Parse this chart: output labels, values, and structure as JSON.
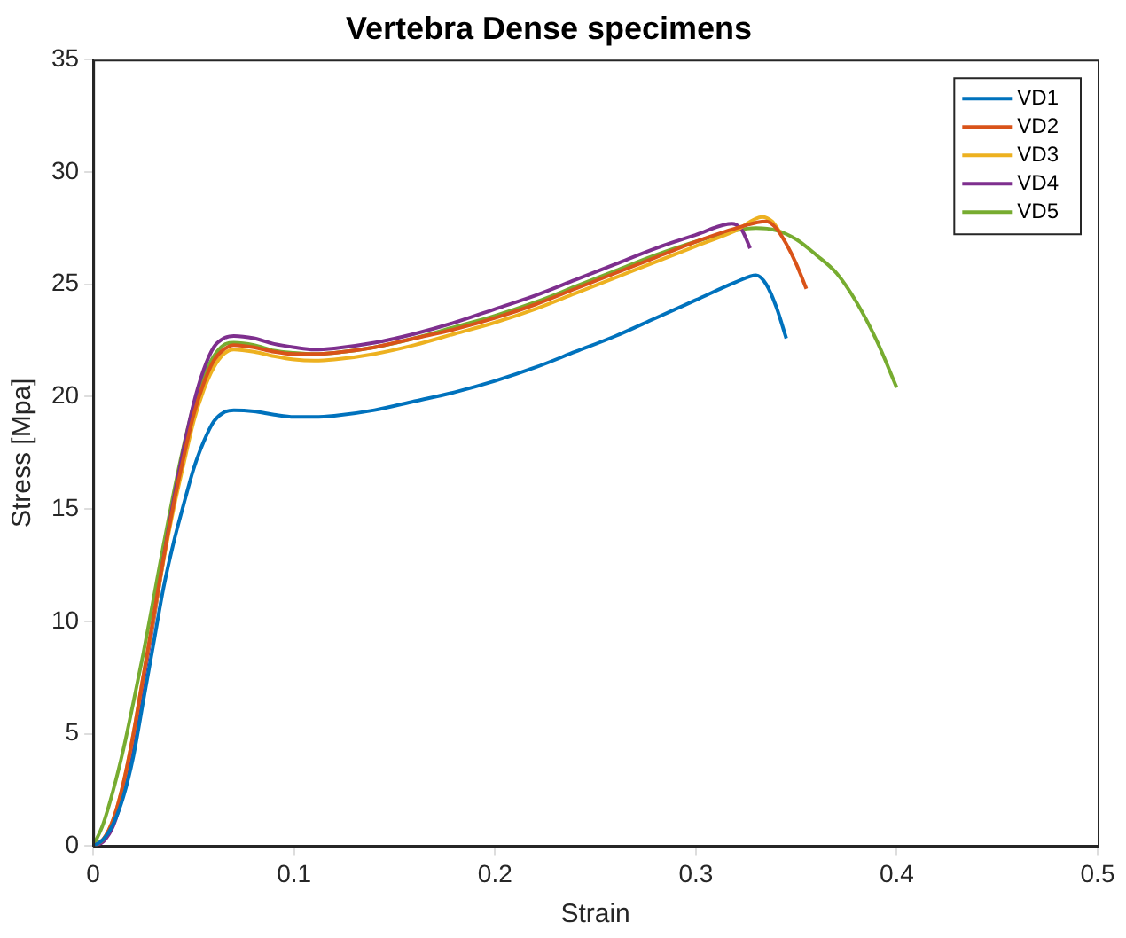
{
  "chart_data": {
    "type": "line",
    "title": "Vertebra Dense specimens",
    "xlabel": "Strain",
    "ylabel": "Stress [Mpa]",
    "xlim": [
      0,
      0.5
    ],
    "xticks": [
      0,
      0.1,
      0.2,
      0.3,
      0.4,
      0.5
    ],
    "ylim": [
      0,
      35
    ],
    "yticks": [
      0,
      5,
      10,
      15,
      20,
      25,
      30,
      35
    ],
    "grid": false,
    "legend": "top right",
    "marker": "none",
    "line_style": "solid",
    "series": [
      {
        "name": "VD1",
        "color": "#0072bd",
        "x": [
          0,
          0.005,
          0.01,
          0.015,
          0.02,
          0.025,
          0.03,
          0.035,
          0.04,
          0.045,
          0.05,
          0.055,
          0.06,
          0.065,
          0.07,
          0.08,
          0.09,
          0.1,
          0.11,
          0.12,
          0.14,
          0.16,
          0.18,
          0.2,
          0.22,
          0.24,
          0.26,
          0.28,
          0.3,
          0.32,
          0.33,
          0.335,
          0.34,
          0.345
        ],
        "values": [
          0,
          0.3,
          1,
          2.2,
          4,
          6.5,
          9,
          11.5,
          13.5,
          15.2,
          16.8,
          18,
          18.9,
          19.3,
          19.4,
          19.35,
          19.2,
          19.1,
          19.1,
          19.15,
          19.4,
          19.8,
          20.2,
          20.7,
          21.3,
          22,
          22.7,
          23.5,
          24.3,
          25.1,
          25.4,
          25,
          24,
          22.6
        ]
      },
      {
        "name": "VD2",
        "color": "#d95319",
        "x": [
          0,
          0.005,
          0.01,
          0.015,
          0.02,
          0.025,
          0.03,
          0.035,
          0.04,
          0.045,
          0.05,
          0.055,
          0.06,
          0.065,
          0.07,
          0.08,
          0.09,
          0.1,
          0.11,
          0.12,
          0.14,
          0.16,
          0.18,
          0.2,
          0.22,
          0.24,
          0.26,
          0.28,
          0.3,
          0.32,
          0.335,
          0.34,
          0.345,
          0.35,
          0.355
        ],
        "values": [
          0,
          0.3,
          1.2,
          2.8,
          5,
          7.6,
          10.2,
          12.8,
          15.2,
          17.3,
          19.2,
          20.6,
          21.6,
          22.1,
          22.3,
          22.2,
          22,
          21.9,
          21.9,
          21.95,
          22.2,
          22.6,
          23,
          23.5,
          24.1,
          24.8,
          25.5,
          26.2,
          26.9,
          27.5,
          27.8,
          27.5,
          26.8,
          25.9,
          24.8
        ]
      },
      {
        "name": "VD3",
        "color": "#edb120",
        "x": [
          0,
          0.005,
          0.01,
          0.015,
          0.02,
          0.025,
          0.03,
          0.035,
          0.04,
          0.045,
          0.05,
          0.055,
          0.06,
          0.065,
          0.07,
          0.08,
          0.09,
          0.1,
          0.11,
          0.12,
          0.14,
          0.16,
          0.18,
          0.2,
          0.22,
          0.24,
          0.26,
          0.28,
          0.3,
          0.32,
          0.333,
          0.338,
          0.342
        ],
        "values": [
          0,
          0.3,
          1.2,
          2.8,
          5,
          7.6,
          10.1,
          12.7,
          15,
          17,
          18.9,
          20.3,
          21.3,
          21.9,
          22.1,
          22,
          21.8,
          21.65,
          21.6,
          21.65,
          21.9,
          22.3,
          22.8,
          23.3,
          23.9,
          24.6,
          25.3,
          26,
          26.7,
          27.4,
          28,
          27.8,
          27.3
        ]
      },
      {
        "name": "VD4",
        "color": "#7e2f8e",
        "x": [
          0,
          0.005,
          0.01,
          0.015,
          0.02,
          0.025,
          0.03,
          0.035,
          0.04,
          0.045,
          0.05,
          0.055,
          0.06,
          0.065,
          0.07,
          0.08,
          0.09,
          0.1,
          0.11,
          0.12,
          0.14,
          0.16,
          0.18,
          0.2,
          0.22,
          0.24,
          0.26,
          0.28,
          0.3,
          0.318,
          0.323,
          0.327
        ],
        "values": [
          0,
          0.2,
          0.9,
          2.4,
          4.6,
          7.3,
          10,
          12.8,
          15.4,
          17.7,
          19.7,
          21.2,
          22.2,
          22.6,
          22.7,
          22.6,
          22.35,
          22.2,
          22.1,
          22.15,
          22.4,
          22.8,
          23.3,
          23.9,
          24.5,
          25.2,
          25.9,
          26.6,
          27.2,
          27.7,
          27.4,
          26.6
        ]
      },
      {
        "name": "VD5",
        "color": "#77ac30",
        "x": [
          0,
          0.005,
          0.01,
          0.015,
          0.02,
          0.025,
          0.03,
          0.035,
          0.04,
          0.045,
          0.05,
          0.055,
          0.06,
          0.065,
          0.07,
          0.08,
          0.09,
          0.1,
          0.11,
          0.12,
          0.14,
          0.16,
          0.18,
          0.2,
          0.22,
          0.24,
          0.26,
          0.28,
          0.3,
          0.32,
          0.33,
          0.34,
          0.35,
          0.36,
          0.37,
          0.38,
          0.39,
          0.4
        ],
        "values": [
          0,
          1,
          2.5,
          4.3,
          6.4,
          8.6,
          11,
          13.4,
          15.7,
          17.8,
          19.6,
          20.9,
          21.8,
          22.3,
          22.4,
          22.3,
          22.05,
          21.95,
          21.9,
          21.95,
          22.2,
          22.6,
          23.1,
          23.6,
          24.2,
          24.9,
          25.6,
          26.3,
          26.9,
          27.4,
          27.5,
          27.4,
          27,
          26.3,
          25.5,
          24.2,
          22.5,
          20.4
        ]
      }
    ]
  }
}
